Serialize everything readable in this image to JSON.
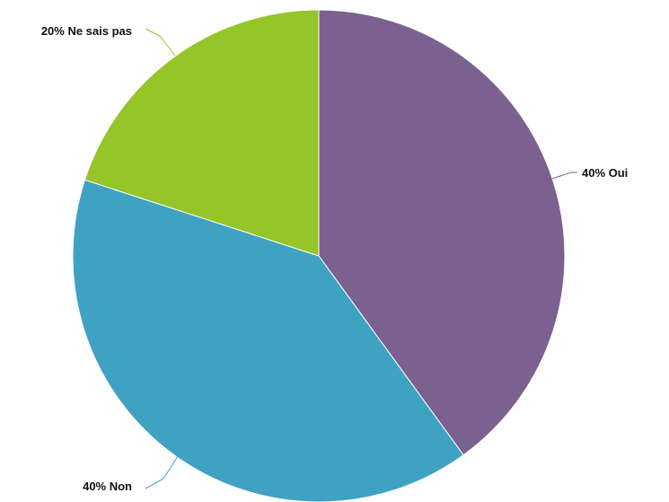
{
  "chart_data": {
    "type": "pie",
    "title": "",
    "slices": [
      {
        "label": "Oui",
        "value": 40,
        "display": "40% Oui",
        "color": "#7b6190"
      },
      {
        "label": "Non",
        "value": 40,
        "display": "40% Non",
        "color": "#3fa2c2"
      },
      {
        "label": "Ne sais pas",
        "value": 20,
        "display": "20% Ne sais pas",
        "color": "#95c528"
      }
    ],
    "start_angle": "12 o'clock",
    "direction": "clockwise",
    "legend": "none",
    "labels": "outside with leader lines"
  }
}
